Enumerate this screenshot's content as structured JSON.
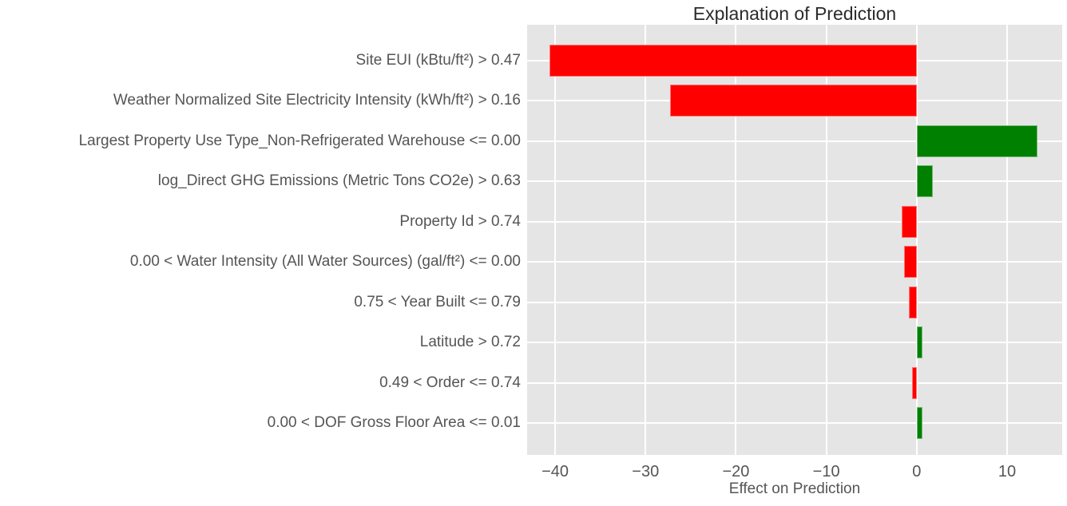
{
  "chart_data": {
    "type": "bar",
    "orientation": "horizontal",
    "title": "Explanation of Prediction",
    "xlabel": "Effect on Prediction",
    "categories": [
      "Site EUI (kBtu/ft²) > 0.47",
      "Weather Normalized Site Electricity Intensity (kWh/ft²) > 0.16",
      "Largest Property Use Type_Non-Refrigerated Warehouse <= 0.00",
      "log_Direct GHG Emissions (Metric Tons CO2e) > 0.63",
      "Property Id > 0.74",
      "0.00 < Water Intensity (All Water Sources) (gal/ft²) <= 0.00",
      "0.75 < Year Built <= 0.79",
      "Latitude > 0.72",
      "0.49 < Order <= 0.74",
      "0.00 < DOF Gross Floor Area <= 0.01"
    ],
    "values": [
      -40.6,
      -27.3,
      13.4,
      1.8,
      -1.7,
      -1.4,
      -0.9,
      0.6,
      -0.55,
      0.6
    ],
    "xticks": [
      -40,
      -30,
      -20,
      -10,
      0,
      10
    ],
    "xlim": [
      -43.1,
      16.1
    ],
    "grid": true,
    "legend_position": "none",
    "style": {
      "positive_color": "#008000",
      "negative_color": "#ff0000",
      "plot_background": "#e5e5e5",
      "grid_color": "#ffffff",
      "tick_label_color": "#555555",
      "title_color": "#2b2b2b"
    }
  }
}
